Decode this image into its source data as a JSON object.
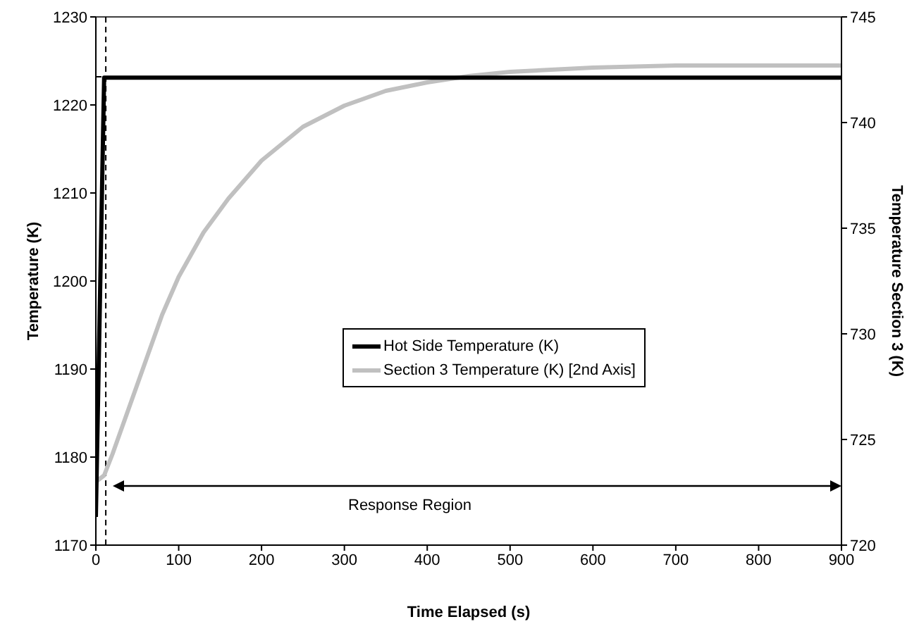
{
  "chart_data": {
    "type": "line",
    "xlabel": "Time Elapsed (s)",
    "ylabel": "Temperature (K)",
    "y2label": "Temperature Section 3 (K)",
    "xlim": [
      0,
      900
    ],
    "xticks": [
      0,
      100,
      200,
      300,
      400,
      500,
      600,
      700,
      800,
      900
    ],
    "ylim": [
      1170,
      1230
    ],
    "yticks": [
      1170,
      1180,
      1190,
      1200,
      1210,
      1220,
      1230
    ],
    "y2lim": [
      720,
      745
    ],
    "y2ticks": [
      720,
      725,
      730,
      735,
      740,
      745
    ],
    "series": [
      {
        "name": "Hot Side Temperature (K)",
        "color": "#000000",
        "x": [
          0,
          10,
          900
        ],
        "values": [
          1173.2,
          1223.1,
          1223.1
        ]
      },
      {
        "name": "Section 3 Temperature (K) [2nd Axis]",
        "color": "#c0c0c0",
        "axis": "y2",
        "x": [
          0,
          10,
          20,
          40,
          60,
          80,
          100,
          130,
          160,
          200,
          250,
          300,
          350,
          400,
          450,
          500,
          600,
          700,
          800,
          900
        ],
        "values": [
          723.0,
          723.3,
          724.3,
          726.5,
          728.7,
          730.9,
          732.7,
          734.8,
          736.4,
          738.2,
          739.8,
          740.8,
          741.5,
          741.9,
          742.2,
          742.4,
          742.6,
          742.7,
          742.7,
          742.7
        ]
      }
    ],
    "ref_lines": [
      {
        "axis": "x",
        "value": 12,
        "color": "#000000",
        "line_style": "dashed"
      },
      {
        "axis": "y",
        "value": 1223.2,
        "color": "#000000",
        "line_style": "dashed"
      }
    ],
    "annotations": [
      "Response Region"
    ],
    "legend": "center",
    "grid": false,
    "marker": "none",
    "line_style": "solid"
  }
}
